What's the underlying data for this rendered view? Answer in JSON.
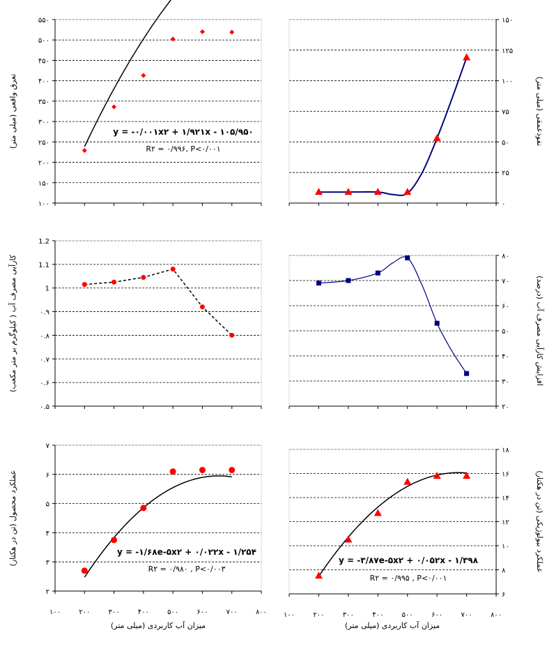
{
  "x_axis": {
    "title": "میزان آب کاربردی (میلی متر)",
    "ticks": [
      "۱۰۰",
      "۲۰۰",
      "۳۰۰",
      "۴۰۰",
      "۵۰۰",
      "۶۰۰",
      "۷۰۰",
      "۸۰۰"
    ],
    "values": [
      100,
      200,
      300,
      400,
      500,
      600,
      700,
      800
    ]
  },
  "chart_data": [
    {
      "id": "c1",
      "type": "scatter",
      "ylabel": "تعرق واقعی (میلی متر)",
      "ylim": [
        100,
        550
      ],
      "yticks": [
        100,
        150,
        200,
        250,
        300,
        350,
        400,
        450,
        500,
        550
      ],
      "ytick_labels": [
        "۱۰۰",
        "۱۵۰",
        "۲۰۰",
        "۲۵۰",
        "۳۰۰",
        "۳۵۰",
        "۴۰۰",
        "۴۵۰",
        "۵۰۰",
        "۵۵۰"
      ],
      "axis_side": "left",
      "x": [
        200,
        300,
        400,
        500,
        600,
        700
      ],
      "y": [
        229,
        336,
        413,
        502,
        520,
        519
      ],
      "marker": "diamond",
      "marker_color": "#ff0000",
      "trend": {
        "type": "poly2",
        "a": -0.001,
        "b": 1.921,
        "c": -105.95,
        "x_range": [
          200,
          700
        ]
      },
      "equation": "y = -۰/۰۰۱x۲ + ۱/۹۲۱x - ۱۰۵/۹۵۰",
      "r2": "R۲ = ۰/۹۹۶, P<۰/۰۰۱"
    },
    {
      "id": "c2",
      "type": "line",
      "ylabel": "نفوذعمقی (میلی متر)",
      "ylim": [
        0,
        150
      ],
      "yticks": [
        0,
        25,
        50,
        75,
        100,
        125,
        150
      ],
      "ytick_labels": [
        "۰",
        "۲۵",
        "۵۰",
        "۷۵",
        "۱۰۰",
        "۱۲۵",
        "۱۵۰"
      ],
      "axis_side": "right",
      "x": [
        200,
        300,
        400,
        500,
        600,
        700
      ],
      "y": [
        9,
        9,
        9,
        9,
        53,
        119
      ],
      "marker": "triangle",
      "marker_color": "#ff0000",
      "line_color": "#000080",
      "curve_points": {
        "x": [
          200,
          300,
          400,
          450,
          500,
          550,
          600,
          650,
          700
        ],
        "y": [
          9,
          9,
          9,
          7,
          8,
          25,
          53,
          85,
          119
        ]
      }
    },
    {
      "id": "c3",
      "type": "line",
      "ylabel": "کارآیی مصرف آب ( کیلوگرم بر متر مکعب)",
      "ylim": [
        0.5,
        1.2
      ],
      "yticks": [
        0.5,
        0.6,
        0.7,
        0.8,
        0.9,
        1.0,
        1.1,
        1.2
      ],
      "ytick_labels": [
        "۰.۵",
        "۰.۶",
        "۰.۷",
        "۰.۸",
        "۰.۹",
        "1",
        "1.1",
        "1.2"
      ],
      "axis_side": "left",
      "x": [
        200,
        300,
        400,
        500,
        600,
        700
      ],
      "y": [
        1.015,
        1.025,
        1.045,
        1.08,
        0.92,
        0.8
      ],
      "marker": "circle",
      "marker_color": "#ff0000",
      "line_style": "dashed"
    },
    {
      "id": "c4",
      "type": "line",
      "ylabel": "افزایش کارآیی مصرف آب (درصد)",
      "ylim": [
        20,
        80
      ],
      "yticks": [
        20,
        30,
        40,
        50,
        60,
        70,
        80
      ],
      "ytick_labels": [
        "۲۰",
        "۳۰",
        "۴۰",
        "۵۰",
        "۶۰",
        "۷۰",
        "۸۰"
      ],
      "axis_side": "right",
      "x": [
        200,
        300,
        400,
        500,
        600,
        700
      ],
      "y": [
        69,
        70,
        73,
        79,
        53,
        33
      ],
      "marker": "square",
      "marker_color": "#000080",
      "line_color": "#000080",
      "curve_points": {
        "x": [
          200,
          300,
          400,
          450,
          500,
          550,
          600,
          650,
          700
        ],
        "y": [
          69,
          70,
          73,
          77,
          79,
          68,
          53,
          42,
          33
        ]
      }
    },
    {
      "id": "c5",
      "type": "scatter",
      "ylabel": "عملکرد محصول (تن در هکتار)",
      "ylim": [
        2,
        7
      ],
      "yticks": [
        2,
        3,
        4,
        5,
        6,
        7
      ],
      "ytick_labels": [
        "۲",
        "۳",
        "۴",
        "۵",
        "۶",
        "۷"
      ],
      "axis_side": "left",
      "x": [
        200,
        300,
        400,
        500,
        600,
        700
      ],
      "y": [
        2.7,
        3.75,
        4.85,
        6.1,
        6.15,
        6.15
      ],
      "marker": "circle",
      "marker_color": "#ff0000",
      "trend": {
        "type": "poly2",
        "a": -1.68e-05,
        "b": 0.022,
        "c": -1.254,
        "x_range": [
          200,
          700
        ]
      },
      "equation": "y = -۱/۶۸e-۵x۲ + ۰/۰۲۲x - ۱/۲۵۴",
      "r2": "R۲ = ۰/۹۸۰ , P<۰/۰۰۳"
    },
    {
      "id": "c6",
      "type": "scatter",
      "ylabel": "عملکرد بیولوژیکی (تن در هکتار)",
      "ylim": [
        6,
        18
      ],
      "yticks": [
        6,
        8,
        10,
        12,
        14,
        16,
        18
      ],
      "ytick_labels": [
        "۶",
        "۸",
        "۱۰",
        "۱۲",
        "۱۴",
        "۱۶",
        "۱۸"
      ],
      "axis_side": "right",
      "x": [
        200,
        300,
        400,
        500,
        600,
        700
      ],
      "y": [
        7.5,
        10.5,
        12.7,
        15.3,
        15.8,
        15.8
      ],
      "marker": "triangle",
      "marker_color": "#ff0000",
      "trend": {
        "type": "poly2",
        "a": -3.87e-05,
        "b": 0.052,
        "c": -1.398,
        "x_range": [
          200,
          700
        ]
      },
      "equation": "y = -۳/۸۷e-۵x۲ + ۰/۰۵۲x - ۱/۳۹۸",
      "r2": "R۲ = ۰/۹۹۵ ,  P<۰/۰۰۱"
    }
  ]
}
